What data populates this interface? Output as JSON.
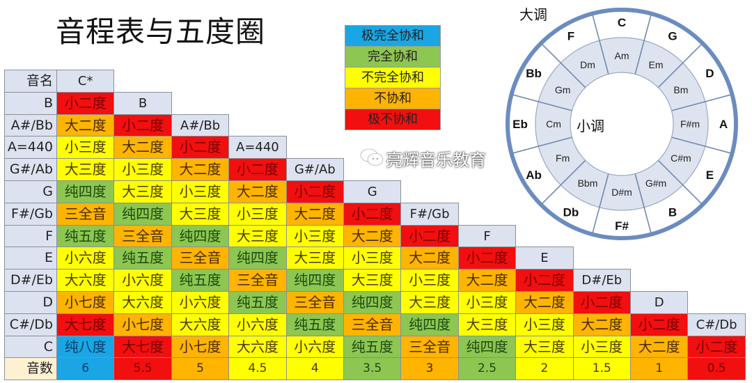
{
  "title": "音程表与五度圈",
  "legend": [
    {
      "label": "极完全协和",
      "level": "perfect_plus",
      "color": "#1aa6e4"
    },
    {
      "label": "完全协和",
      "level": "perfect",
      "color": "#8dc651"
    },
    {
      "label": "不完全协和",
      "level": "imperfect",
      "color": "#ffff00"
    },
    {
      "label": "不协和",
      "level": "dissonant",
      "color": "#ffb400"
    },
    {
      "label": "极不协和",
      "level": "extreme",
      "color": "#f20f0f"
    }
  ],
  "level_text_colors": {
    "perfect_plus": "#0d3e6e",
    "perfect": "#1e4a12",
    "imperfect": "#4a3a00",
    "dissonant": "#4a2a00",
    "extreme": "#7a0000"
  },
  "interval_levels": {
    "小二度": "extreme",
    "大二度": "dissonant",
    "小三度": "imperfect",
    "大三度": "imperfect",
    "纯四度": "perfect",
    "三全音": "dissonant",
    "纯五度": "perfect",
    "小六度": "imperfect",
    "大六度": "imperfect",
    "小七度": "dissonant",
    "大七度": "extreme",
    "纯八度": "perfect_plus"
  },
  "table": {
    "corner_label": "音名",
    "top_note": "C*",
    "rows": [
      {
        "note": "B",
        "cells": [
          "小二度"
        ]
      },
      {
        "note": "A#/Bb",
        "cells": [
          "大二度",
          "小二度"
        ]
      },
      {
        "note": "A=440",
        "cells": [
          "小三度",
          "大二度",
          "小二度"
        ]
      },
      {
        "note": "G#/Ab",
        "cells": [
          "大三度",
          "小三度",
          "大二度",
          "小二度"
        ]
      },
      {
        "note": "G",
        "cells": [
          "纯四度",
          "大三度",
          "小三度",
          "大二度",
          "小二度"
        ]
      },
      {
        "note": "F#/Gb",
        "cells": [
          "三全音",
          "纯四度",
          "大三度",
          "小三度",
          "大二度",
          "小二度"
        ]
      },
      {
        "note": "F",
        "cells": [
          "纯五度",
          "三全音",
          "纯四度",
          "大三度",
          "小三度",
          "大二度",
          "小二度"
        ]
      },
      {
        "note": "E",
        "cells": [
          "小六度",
          "纯五度",
          "三全音",
          "纯四度",
          "大三度",
          "小三度",
          "大二度",
          "小二度"
        ]
      },
      {
        "note": "D#/Eb",
        "cells": [
          "大六度",
          "小六度",
          "纯五度",
          "三全音",
          "纯四度",
          "大三度",
          "小三度",
          "大二度",
          "小二度"
        ]
      },
      {
        "note": "D",
        "cells": [
          "小七度",
          "大六度",
          "小六度",
          "纯五度",
          "三全音",
          "纯四度",
          "大三度",
          "小三度",
          "大二度",
          "小二度"
        ]
      },
      {
        "note": "C#/Db",
        "cells": [
          "大七度",
          "小七度",
          "大六度",
          "小六度",
          "纯五度",
          "三全音",
          "纯四度",
          "大三度",
          "小三度",
          "大二度",
          "小二度"
        ]
      },
      {
        "note": "C",
        "cells": [
          "纯八度",
          "大七度",
          "小七度",
          "大六度",
          "小六度",
          "纯五度",
          "三全音",
          "纯四度",
          "大三度",
          "小三度",
          "大二度",
          "小二度"
        ]
      }
    ],
    "steps_label": "音数",
    "steps": [
      "6",
      "5.5",
      "5",
      "4.5",
      "4",
      "3.5",
      "3",
      "2.5",
      "2",
      "1.5",
      "1",
      "0.5"
    ]
  },
  "circle": {
    "major_label": "大调",
    "minor_label": "小调",
    "major": [
      "C",
      "G",
      "D",
      "A",
      "E",
      "B",
      "F#",
      "Db",
      "Ab",
      "Eb",
      "Bb",
      "F"
    ],
    "minor": [
      "Am",
      "Em",
      "Bm",
      "F#m",
      "C#m",
      "G#m",
      "D#m",
      "Bbm",
      "Fm",
      "Cm",
      "Gm",
      "Dm"
    ],
    "ring_color": "#6b8cbf",
    "minor_fill": "#dde4f0"
  },
  "watermark": "亮辉音乐教育"
}
